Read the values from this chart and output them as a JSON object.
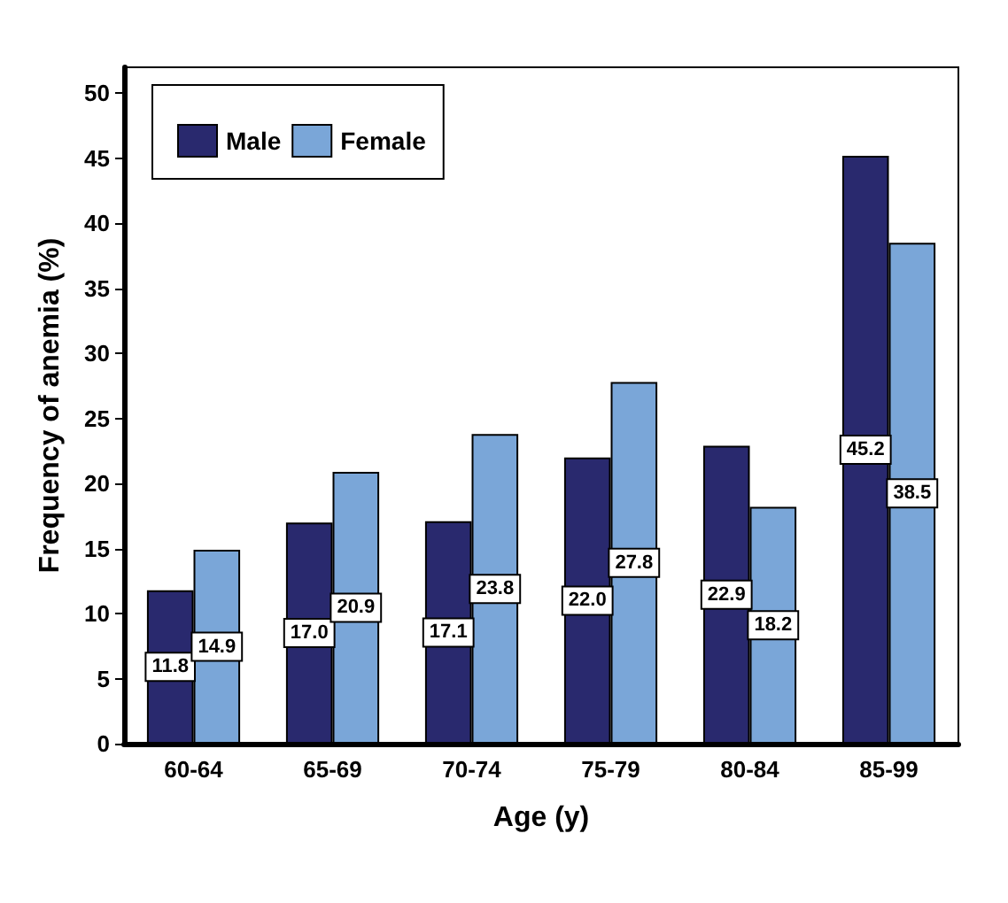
{
  "chart_data": {
    "type": "bar",
    "xlabel": "Age (y)",
    "ylabel": "Frequency of anemia (%)",
    "categories": [
      "60-64",
      "65-69",
      "70-74",
      "75-79",
      "80-84",
      "85-99"
    ],
    "series": [
      {
        "name": "Male",
        "color": "#29296e",
        "values": [
          11.8,
          17.0,
          17.1,
          22.0,
          22.9,
          45.2
        ],
        "value_labels": [
          "11.8",
          "17.0",
          "17.1",
          "22.0",
          "22.9",
          "45.2"
        ]
      },
      {
        "name": "Female",
        "color": "#7aa6d8",
        "values": [
          14.9,
          20.9,
          23.8,
          27.8,
          18.2,
          38.5
        ],
        "value_labels": [
          "14.9",
          "20.9",
          "23.8",
          "27.8",
          "18.2",
          "38.5"
        ]
      }
    ],
    "ylim": [
      0,
      52
    ],
    "yticks": [
      0,
      5,
      10,
      15,
      20,
      25,
      30,
      35,
      40,
      45,
      50
    ],
    "grid": false,
    "legend": "top left"
  }
}
